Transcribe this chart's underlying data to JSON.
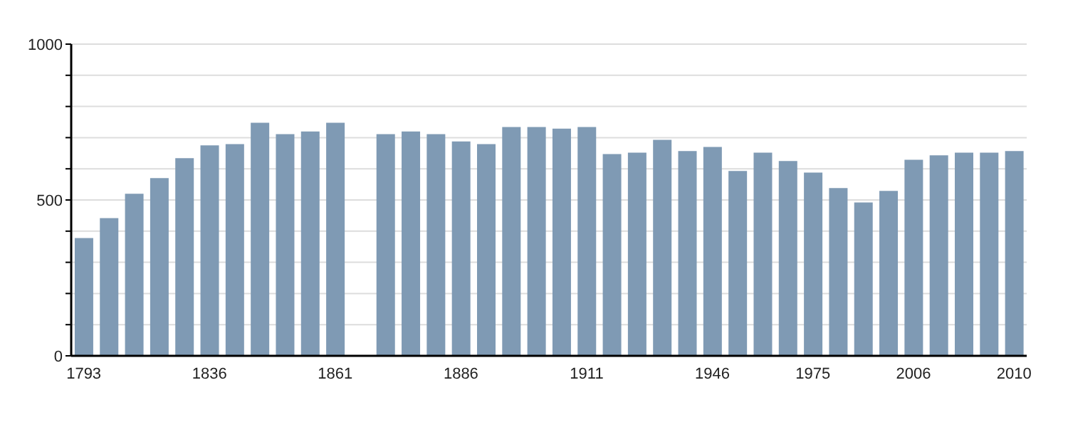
{
  "chart_data": {
    "type": "bar",
    "categories": [
      "1793",
      null,
      null,
      null,
      null,
      "1836",
      null,
      null,
      null,
      null,
      "1861",
      null,
      null,
      null,
      null,
      "1886",
      null,
      null,
      null,
      null,
      "1911",
      null,
      null,
      null,
      null,
      "1946",
      null,
      null,
      null,
      "1975",
      null,
      null,
      null,
      "2006",
      null,
      null,
      null,
      "2010"
    ],
    "values": [
      378,
      442,
      520,
      570,
      634,
      675,
      679,
      748,
      711,
      720,
      748,
      null,
      711,
      720,
      711,
      688,
      679,
      734,
      734,
      729,
      734,
      647,
      652,
      693,
      657,
      670,
      593,
      652,
      625,
      588,
      538,
      492,
      529,
      629,
      643,
      652,
      652,
      657
    ],
    "color": "#7f9ab4",
    "ylim": [
      0,
      1000
    ],
    "yticks": [
      0,
      {
        "value": 100,
        "label": null
      },
      {
        "value": 200,
        "label": null
      },
      {
        "value": 300,
        "label": null
      },
      {
        "value": 400,
        "label": null
      },
      500,
      {
        "value": 600,
        "label": null
      },
      {
        "value": 700,
        "label": null
      },
      {
        "value": 800,
        "label": null
      },
      {
        "value": 900,
        "label": null
      },
      1000
    ],
    "grid": "y"
  }
}
